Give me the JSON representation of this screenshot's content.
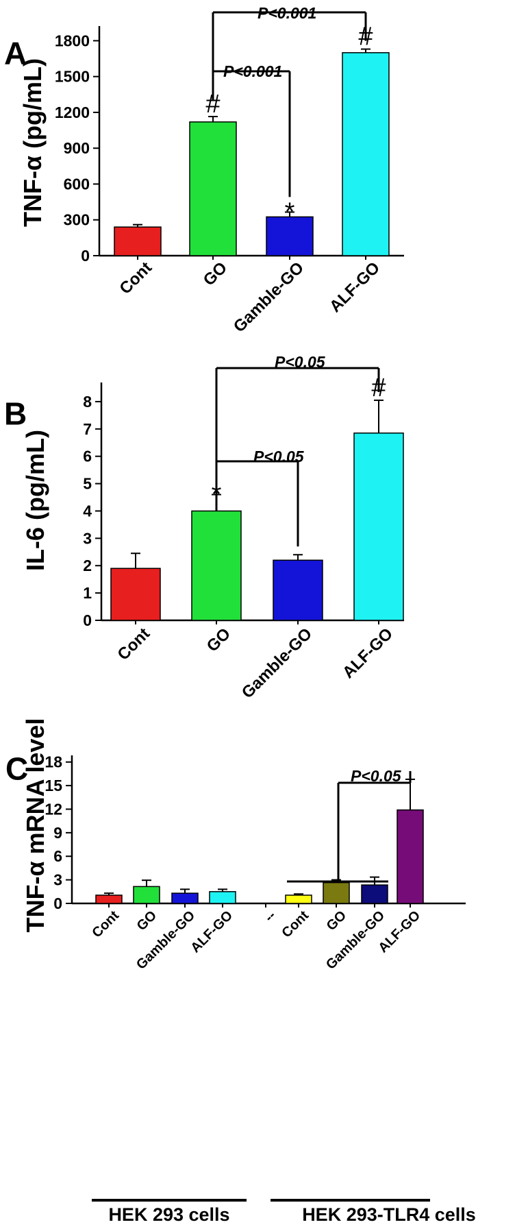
{
  "chart_data": [
    {
      "type": "bar",
      "panel_label": "A",
      "ylabel": "TNF-α (pg/mL)",
      "ylim": [
        0,
        1900
      ],
      "yticks": [
        "0",
        "300",
        "600",
        "900",
        "1200",
        "1500",
        "1800"
      ],
      "categories": [
        "Cont",
        "GO",
        "Gamble-GO",
        "ALF-GO"
      ],
      "values": [
        240,
        1120,
        325,
        1700
      ],
      "errors": [
        20,
        45,
        40,
        30
      ],
      "colors": [
        "#e81f1f",
        "#22e03a",
        "#1414d8",
        "#1ef2f2"
      ],
      "marks": [
        "",
        "#",
        "*",
        "#"
      ],
      "comparisons": [
        {
          "from": 1,
          "to": 3,
          "label": "P<0.001"
        },
        {
          "from": 1,
          "to": 2,
          "label": "P<0.001"
        }
      ]
    },
    {
      "type": "bar",
      "panel_label": "B",
      "ylabel": "IL-6 (pg/mL)",
      "ylim": [
        0,
        8.6
      ],
      "yticks": [
        "0",
        "1",
        "2",
        "3",
        "4",
        "5",
        "6",
        "7",
        "8"
      ],
      "categories": [
        "Cont",
        "GO",
        "Gamble-GO",
        "ALF-GO"
      ],
      "values": [
        1.9,
        4.0,
        2.2,
        6.85
      ],
      "errors": [
        0.55,
        0.6,
        0.2,
        1.2
      ],
      "colors": [
        "#e81f1f",
        "#22e03a",
        "#1414d8",
        "#1ef2f2"
      ],
      "marks": [
        "",
        "*",
        "",
        "#"
      ],
      "comparisons": [
        {
          "from": 1,
          "to": 3,
          "label": "P<0.05"
        },
        {
          "from": 1,
          "to": 2,
          "label": "P<0.05"
        }
      ]
    },
    {
      "type": "bar",
      "panel_label": "C",
      "ylabel": "TNF-α mRNA level",
      "ylim": [
        0,
        18.5
      ],
      "yticks": [
        "0",
        "3",
        "6",
        "9",
        "12",
        "15",
        "18"
      ],
      "categories": [
        "Cont",
        "GO",
        "Gamble-GO",
        "ALF-GO",
        "--",
        "Cont",
        "GO",
        "Gamble-GO",
        "ALF-GO"
      ],
      "values": [
        1.05,
        2.15,
        1.3,
        1.5,
        null,
        1.05,
        2.65,
        2.35,
        11.9
      ],
      "errors": [
        0.25,
        0.8,
        0.5,
        0.3,
        null,
        0.15,
        0.35,
        1.0,
        3.9
      ],
      "colors": [
        "#e81f1f",
        "#22e03a",
        "#1414d8",
        "#1ef2f2",
        "",
        "#ffff14",
        "#7a7a10",
        "#0c0c7a",
        "#760c78"
      ],
      "groups": [
        "HEK 293 cells",
        "HEK 293-TLR4 cells"
      ],
      "comparisons": [
        {
          "from": 6,
          "to": 8,
          "label": "P<0.05"
        }
      ]
    }
  ]
}
